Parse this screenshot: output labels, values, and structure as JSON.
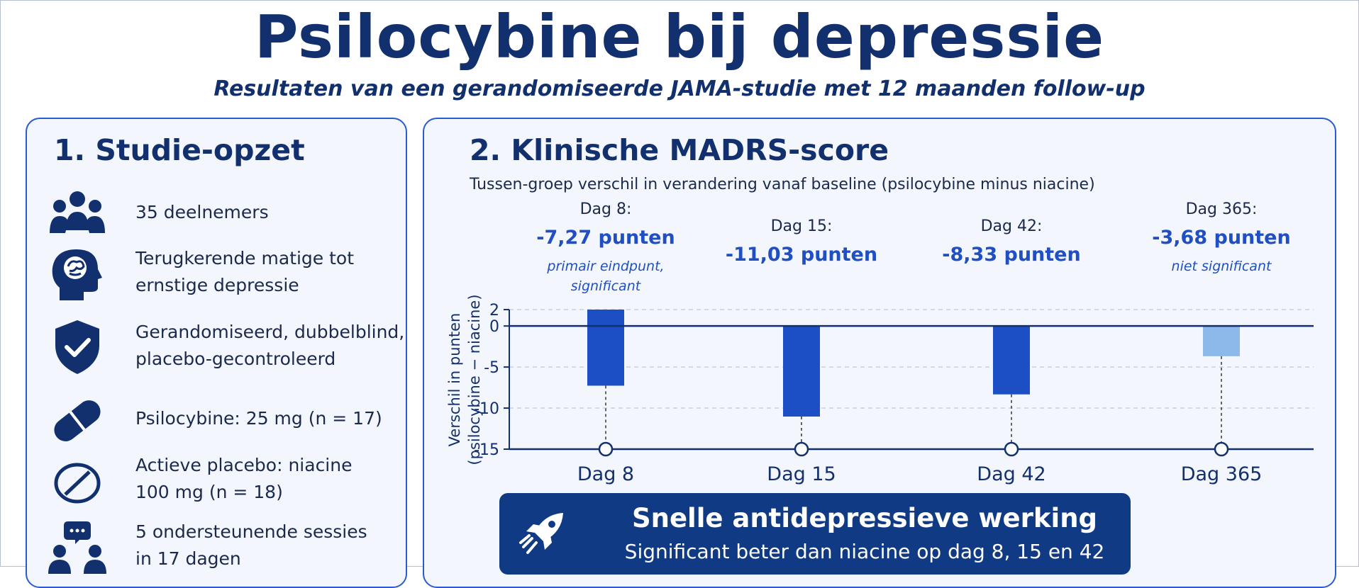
{
  "header": {
    "title": "Psilocybine bij depressie",
    "subtitle": "Resultaten van een gerandomiseerde JAMA-studie met 12 maanden follow-up"
  },
  "study_design": {
    "title": "1. Studie-opzet",
    "items": [
      {
        "icon": "people-group-icon",
        "lines": [
          "35 deelnemers"
        ]
      },
      {
        "icon": "head-brain-icon",
        "lines": [
          "Terugkerende matige tot",
          "ernstige depressie"
        ]
      },
      {
        "icon": "shield-check-icon",
        "lines": [
          "Gerandomiseerd, dubbelblind,",
          "placebo-gecontroleerd"
        ]
      },
      {
        "icon": "capsule-pill-icon",
        "lines": [
          "Psilocybine: 25 mg (n = 17)"
        ]
      },
      {
        "icon": "tablet-icon",
        "lines": [
          "Actieve placebo: niacine",
          "100 mg (n = 18)"
        ]
      },
      {
        "icon": "people-chat-icon",
        "lines": [
          "5 ondersteunende sessies",
          "in 17 dagen"
        ]
      }
    ]
  },
  "madrs": {
    "title": "2. Klinische MADRS-score",
    "subtitle": "Tussen-groep verschil in verandering vanaf baseline (psilocybine minus niacine)",
    "banner": {
      "icon": "rocket-icon",
      "title": "Snelle antidepressieve werking",
      "text": "Significant beter dan niacine op dag 8, 15 en 42"
    }
  },
  "colors": {
    "accent": "#2a5bd1",
    "navy": "#12306e",
    "bar_significant": "#1c4fc4",
    "bar_not_significant": "#8db8ea",
    "banner": "#113a85"
  },
  "chart_data": {
    "type": "bar",
    "categories": [
      "Dag 8",
      "Dag 15",
      "Dag 42",
      "Dag 365"
    ],
    "values": [
      -7.27,
      -11.03,
      -8.33,
      -3.68
    ],
    "bar_tops": [
      2,
      0,
      0,
      0
    ],
    "annotations": [
      {
        "label": "Dag 8:",
        "value": "-7,27 punten",
        "note": [
          "primair eindpunt,",
          "significant"
        ]
      },
      {
        "label": "Dag 15:",
        "value": "-11,03 punten",
        "note": []
      },
      {
        "label": "Dag 42:",
        "value": "-8,33 punten",
        "note": []
      },
      {
        "label": "Dag 365:",
        "value": "-3,68 punten",
        "note": [
          "niet significant"
        ]
      }
    ],
    "significant": [
      true,
      true,
      true,
      false
    ],
    "ylabel": [
      "Verschil in punten",
      "(psilocybine − niacine)"
    ],
    "yticks": [
      2,
      0,
      -5,
      -10,
      -15
    ],
    "ylim": [
      -15,
      2
    ],
    "grid": true
  }
}
